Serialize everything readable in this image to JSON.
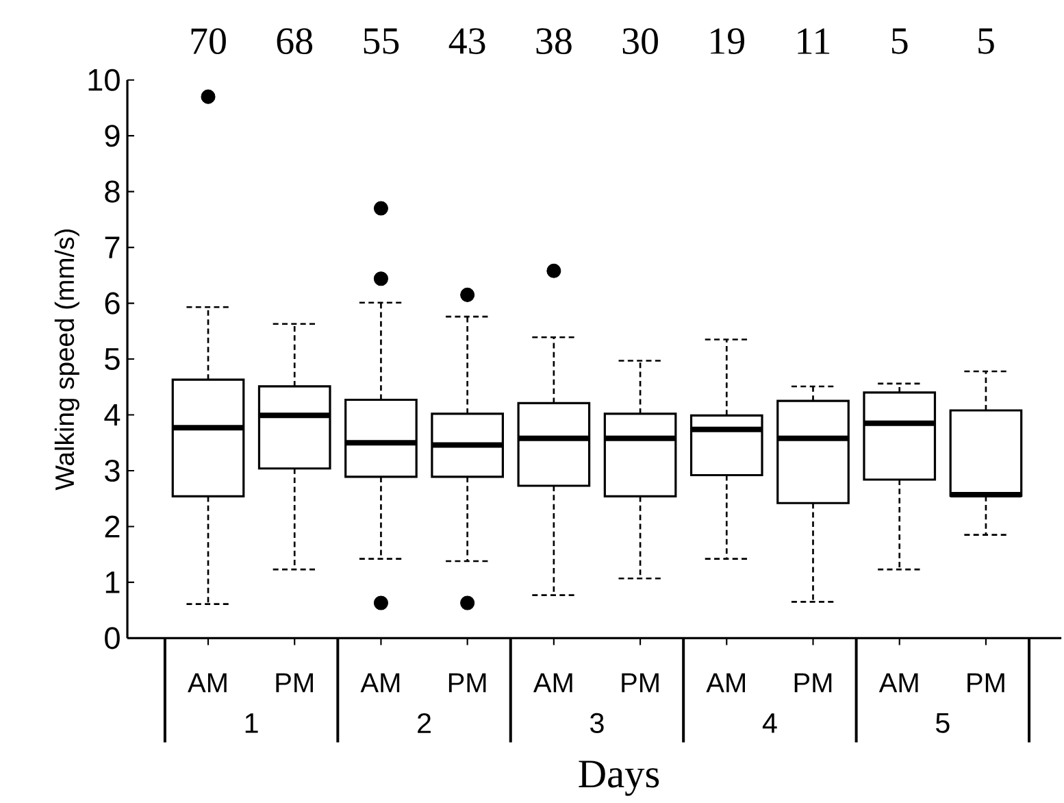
{
  "chart_data": {
    "type": "box",
    "xlabel": "Days",
    "ylabel": "Walking speed (mm/s)",
    "categories": [
      "AM",
      "PM",
      "AM",
      "PM",
      "AM",
      "PM",
      "AM",
      "PM",
      "AM",
      "PM"
    ],
    "boxes": [
      {
        "low": 0.61,
        "q1": 2.54,
        "median": 3.77,
        "q3": 4.63,
        "high": 5.93,
        "outliers": [
          9.7
        ]
      },
      {
        "low": 1.23,
        "q1": 3.04,
        "median": 3.99,
        "q3": 4.51,
        "high": 5.63
      },
      {
        "low": 1.42,
        "q1": 2.89,
        "median": 3.5,
        "q3": 4.27,
        "high": 6.01,
        "outliers": [
          7.7,
          6.44,
          0.63
        ]
      },
      {
        "low": 1.38,
        "q1": 2.89,
        "median": 3.46,
        "q3": 4.02,
        "high": 5.76,
        "outliers": [
          6.15,
          0.63
        ]
      },
      {
        "low": 0.77,
        "q1": 2.73,
        "median": 3.58,
        "q3": 4.21,
        "high": 5.39,
        "outliers": [
          6.58
        ]
      },
      {
        "low": 1.07,
        "q1": 2.54,
        "median": 3.58,
        "q3": 4.02,
        "high": 4.97
      },
      {
        "low": 1.42,
        "q1": 2.92,
        "median": 3.74,
        "q3": 3.99,
        "high": 5.35
      },
      {
        "low": 0.65,
        "q1": 2.42,
        "median": 3.58,
        "q3": 4.25,
        "high": 4.51
      },
      {
        "low": 1.23,
        "q1": 2.84,
        "median": 3.85,
        "q3": 4.4,
        "high": 4.56
      },
      {
        "low": 1.85,
        "q1": 2.55,
        "median": 2.57,
        "q3": 4.08,
        "high": 4.78
      }
    ],
    "ylim": [
      0,
      10
    ],
    "yticks": [
      0,
      1,
      2,
      3,
      4,
      5,
      6,
      7,
      8,
      9,
      10
    ],
    "marker": "circle",
    "annotations": [
      "70",
      "68",
      "55",
      "43",
      "38",
      "30",
      "19",
      "11",
      "5",
      "5",
      "1",
      "2",
      "3",
      "4",
      "5"
    ]
  }
}
